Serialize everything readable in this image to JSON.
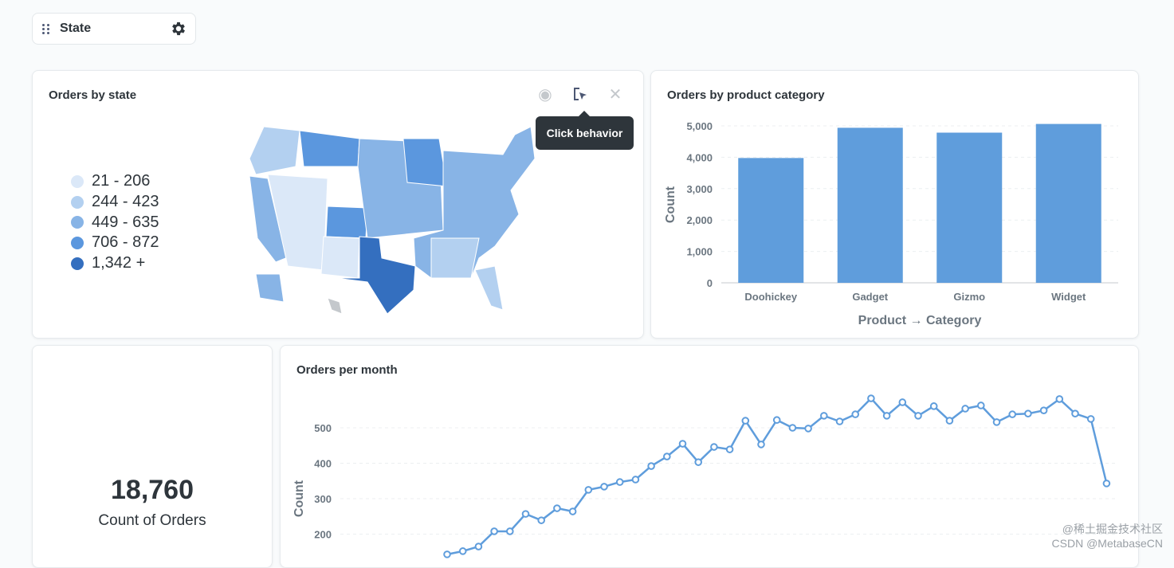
{
  "filter": {
    "label": "State",
    "icon": "gear-icon"
  },
  "map_card": {
    "title": "Orders by state",
    "tooltip": "Click behavior",
    "legend": [
      {
        "label": "21 - 206",
        "color": "#dbe8f8"
      },
      {
        "label": "244 - 423",
        "color": "#b3d0f0"
      },
      {
        "label": "449 - 635",
        "color": "#88b4e6"
      },
      {
        "label": "706 - 872",
        "color": "#5b97de"
      },
      {
        "label": "1,342 +",
        "color": "#346fbf"
      }
    ]
  },
  "scalar_card": {
    "value": "18,760",
    "label": "Count of Orders"
  },
  "watermark": {
    "line1": "@稀土掘金技术社区",
    "line2": "CSDN @MetabaseCN"
  },
  "chart_data": [
    {
      "type": "bar",
      "title": "Orders by product category",
      "categories": [
        "Doohickey",
        "Gadget",
        "Gizmo",
        "Widget"
      ],
      "values": [
        3976,
        4939,
        4784,
        5061
      ],
      "xlabel": "Product → Category",
      "ylabel": "Count",
      "ylim": [
        0,
        5000
      ],
      "yticks": [
        "0",
        "1,000",
        "2,000",
        "3,000",
        "4,000",
        "5,000"
      ],
      "color": "#5f9ddc"
    },
    {
      "type": "line",
      "title": "Orders per month",
      "ylabel": "Count",
      "yticks": [
        "200",
        "300",
        "400",
        "500"
      ],
      "color": "#5f9ddc",
      "values": [
        143,
        152,
        165,
        208,
        208,
        257,
        239,
        273,
        264,
        325,
        334,
        347,
        354,
        392,
        419,
        455,
        403,
        446,
        439,
        520,
        453,
        522,
        500,
        498,
        534,
        518,
        538,
        583,
        534,
        572,
        534,
        561,
        520,
        554,
        563,
        516,
        538,
        540,
        549,
        581,
        540,
        525,
        343
      ]
    }
  ]
}
